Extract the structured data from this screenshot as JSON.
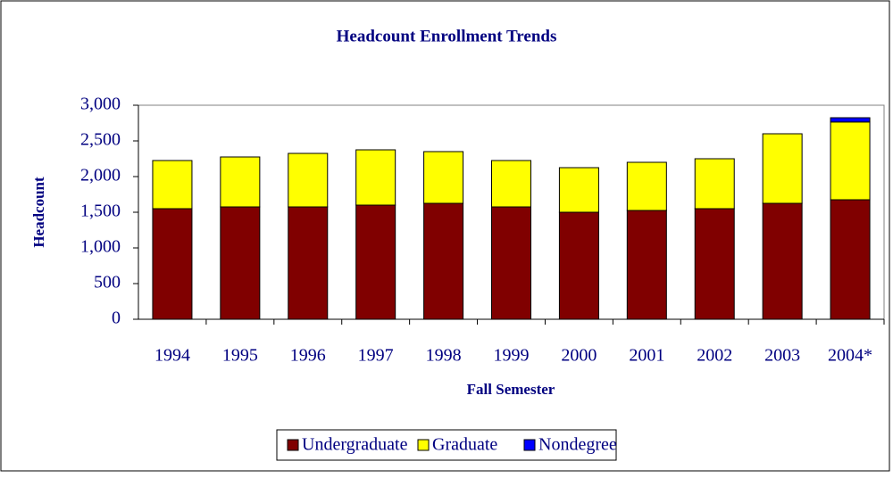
{
  "chart_data": {
    "type": "stacked_bar",
    "title": "Headcount Enrollment Trends",
    "x_label": "Fall Semester",
    "y_label": "Headcount",
    "categories": [
      "1994",
      "1995",
      "1996",
      "1997",
      "1998",
      "1999",
      "2000",
      "2001",
      "2002",
      "2003",
      "2004*"
    ],
    "series": [
      {
        "name": "Undergraduate",
        "color": "#800000",
        "values": [
          1550,
          1575,
          1575,
          1600,
          1625,
          1575,
          1500,
          1525,
          1550,
          1625,
          1675
        ]
      },
      {
        "name": "Graduate",
        "color": "#ffff00",
        "values": [
          675,
          700,
          750,
          775,
          725,
          650,
          625,
          675,
          700,
          975,
          1090
        ]
      },
      {
        "name": "Nondegree",
        "color": "#0000ff",
        "values": [
          0,
          0,
          0,
          0,
          0,
          0,
          0,
          0,
          0,
          0,
          60
        ]
      }
    ],
    "ylim": [
      0,
      3000
    ],
    "yticks": [
      0,
      {
        "value": 500,
        "label": "500"
      },
      {
        "value": 1000,
        "label": "1,000"
      },
      {
        "value": 1500,
        "label": "1,500"
      },
      {
        "value": 2000,
        "label": "2,000"
      },
      {
        "value": 2500,
        "label": "2,500"
      },
      {
        "value": 3000,
        "label": "3,000"
      }
    ],
    "legend": "bottom"
  }
}
